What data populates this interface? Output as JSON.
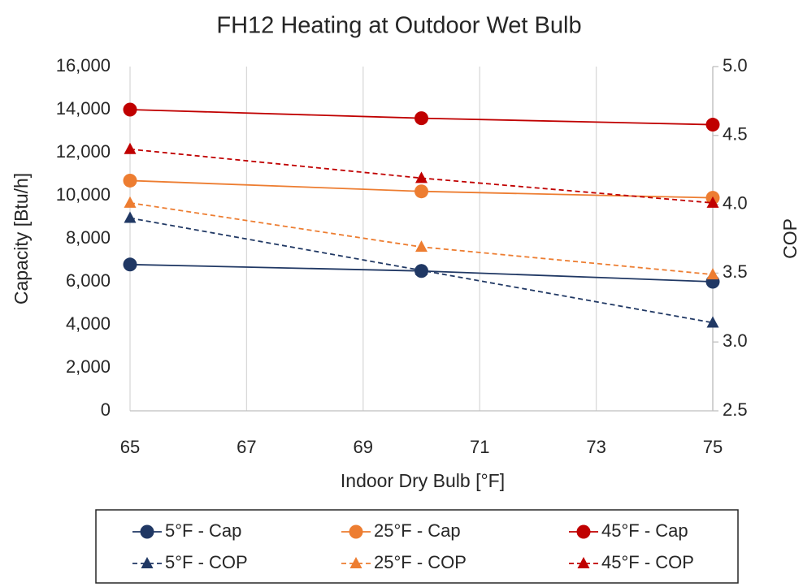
{
  "chart_data": {
    "type": "line",
    "title": "FH12 Heating at Outdoor Wet Bulb",
    "xlabel": "Indoor Dry Bulb [°F]",
    "ylabel": "Capacity [Btu/h]",
    "y2label": "COP",
    "x": [
      65,
      70,
      75
    ],
    "xlim": [
      65,
      75
    ],
    "xticks": [
      65,
      67,
      69,
      71,
      73,
      75
    ],
    "ylim": [
      0,
      16000
    ],
    "yticks": [
      0,
      {
        "value": 2000,
        "label": "2,000"
      },
      {
        "value": 4000,
        "label": "4,000"
      },
      {
        "value": 6000,
        "label": "6,000"
      },
      {
        "value": 8000,
        "label": "8,000"
      },
      {
        "value": 10000,
        "label": "10,000"
      },
      {
        "value": 12000,
        "label": "12,000"
      },
      {
        "value": 14000,
        "label": "14,000"
      },
      {
        "value": 16000,
        "label": "16,000"
      }
    ],
    "y2lim": [
      2.5,
      5.0
    ],
    "y2ticks": [
      2.5,
      {
        "value": 3,
        "label": "3.0"
      },
      3.5,
      {
        "value": 4,
        "label": "4.0"
      },
      4.5,
      {
        "value": 5,
        "label": "5.0"
      }
    ],
    "grid": "x",
    "legend": "bottom",
    "series": [
      {
        "name": "5°F - Cap",
        "color": "#203864",
        "marker": "circle",
        "linestyle": "solid",
        "values": [
          6800,
          6500,
          6000
        ]
      },
      {
        "name": "25°F - Cap",
        "color": "#ed7d31",
        "marker": "circle",
        "linestyle": "solid",
        "values": [
          10700,
          10200,
          9900
        ]
      },
      {
        "name": "45°F - Cap",
        "color": "#c00000",
        "marker": "circle",
        "linestyle": "solid",
        "values": [
          14000,
          13600,
          13300
        ]
      },
      {
        "name": "5°F - COP",
        "color": "#203864",
        "marker": "triangle",
        "linestyle": "dashed",
        "axis": "y2",
        "values": [
          3.9,
          3.52,
          3.14
        ]
      },
      {
        "name": "25°F - COP",
        "color": "#ed7d31",
        "marker": "triangle",
        "linestyle": "dashed",
        "axis": "y2",
        "values": [
          4.01,
          3.69,
          3.49
        ]
      },
      {
        "name": "45°F - COP",
        "color": "#c00000",
        "marker": "triangle",
        "linestyle": "dashed",
        "axis": "y2",
        "values": [
          4.4,
          4.19,
          4.01
        ]
      }
    ]
  }
}
